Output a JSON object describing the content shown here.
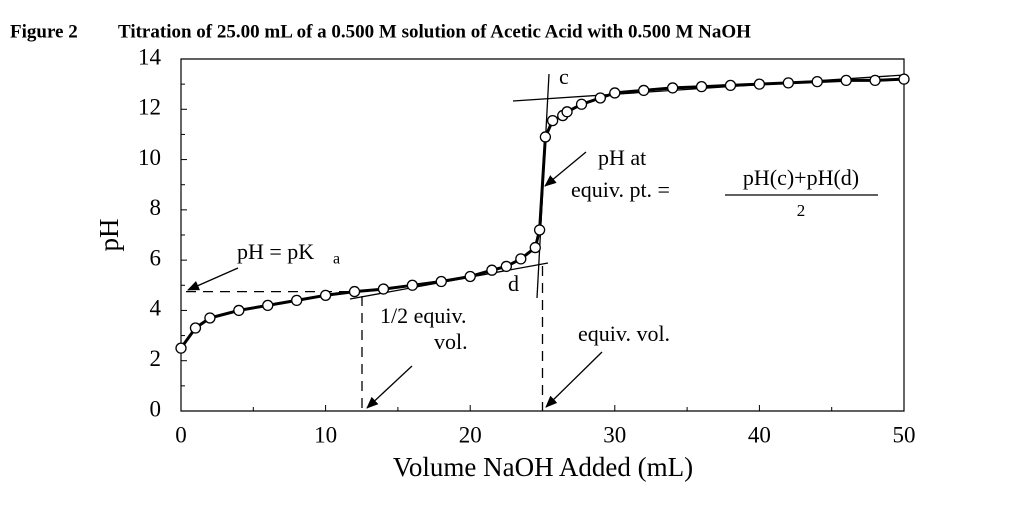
{
  "chart_data": {
    "type": "scatter",
    "title": "Figure 2",
    "subtitle": "Titration of 25.00 mL of a 0.500 M solution of Acetic Acid with 0.500 M NaOH",
    "x_label": "Volume NaOH Added (mL)",
    "y_label": "pH",
    "series": [
      {
        "color": "#000000",
        "x": [
          0,
          1,
          2,
          4,
          6,
          8,
          10,
          12,
          14,
          16,
          18,
          20,
          21.5,
          22.5,
          23.5,
          24.5,
          24.8,
          25.2,
          25.7,
          26.4,
          26.7,
          27.7,
          29,
          30,
          32,
          34,
          36,
          38,
          40,
          42,
          44,
          46,
          48,
          50
        ],
        "values": [
          2.5,
          3.3,
          3.7,
          4.0,
          4.2,
          4.4,
          4.6,
          4.75,
          4.85,
          5.0,
          5.15,
          5.35,
          5.6,
          5.75,
          6.05,
          6.5,
          7.2,
          10.9,
          11.55,
          11.75,
          11.9,
          12.2,
          12.45,
          12.65,
          12.75,
          12.85,
          12.9,
          12.95,
          13.0,
          13.05,
          13.1,
          13.15,
          13.15,
          13.2
        ]
      }
    ],
    "xlim": [
      0,
      50
    ],
    "xticks": [
      0,
      10,
      20,
      30,
      40,
      50
    ],
    "ylim": [
      0,
      14
    ],
    "yticks": [
      0,
      2,
      4,
      6,
      8,
      10,
      12,
      14
    ],
    "annotations": [
      "c",
      "d",
      "pH at",
      "equiv. pt. =",
      "pH(c)+pH(d)",
      "2",
      "pH = pK",
      "a",
      "1/2 equiv.",
      "vol.",
      "equiv. vol."
    ]
  }
}
